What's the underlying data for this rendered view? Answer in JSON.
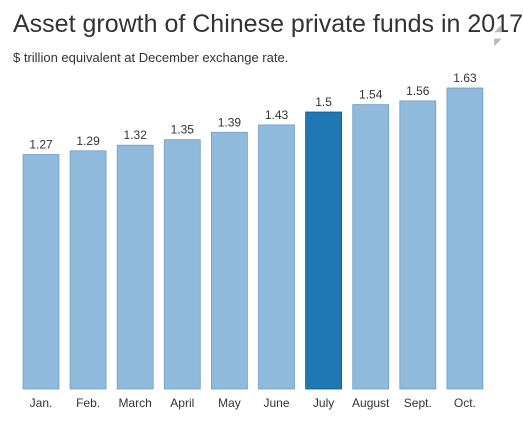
{
  "title": "Asset growth of Chinese private funds in 2017",
  "subtitle": "$ trillion equivalent at December exchange rate.",
  "icons": [
    "expand-icon",
    "collapse-icon"
  ],
  "colors": {
    "bar": "#8fbadb",
    "bar_border": "#6f9fc6",
    "highlight": "#1f78b4",
    "highlight_border": "#12588a"
  },
  "chart_data": {
    "type": "bar",
    "title": "Asset growth of Chinese private funds in 2017",
    "subtitle": "$ trillion equivalent at December exchange rate.",
    "categories": [
      "Jan.",
      "Feb.",
      "March",
      "April",
      "May",
      "June",
      "July",
      "August",
      "Sept.",
      "Oct."
    ],
    "values": [
      1.27,
      1.29,
      1.32,
      1.35,
      1.39,
      1.43,
      1.5,
      1.54,
      1.56,
      1.63
    ],
    "value_labels": [
      "1.27",
      "1.29",
      "1.32",
      "1.35",
      "1.39",
      "1.43",
      "1.5",
      "1.54",
      "1.56",
      "1.63"
    ],
    "highlighted_category": "July",
    "ylim": [
      0,
      1.63
    ],
    "grid": false,
    "legend": "none",
    "xlabel": "",
    "ylabel": ""
  }
}
